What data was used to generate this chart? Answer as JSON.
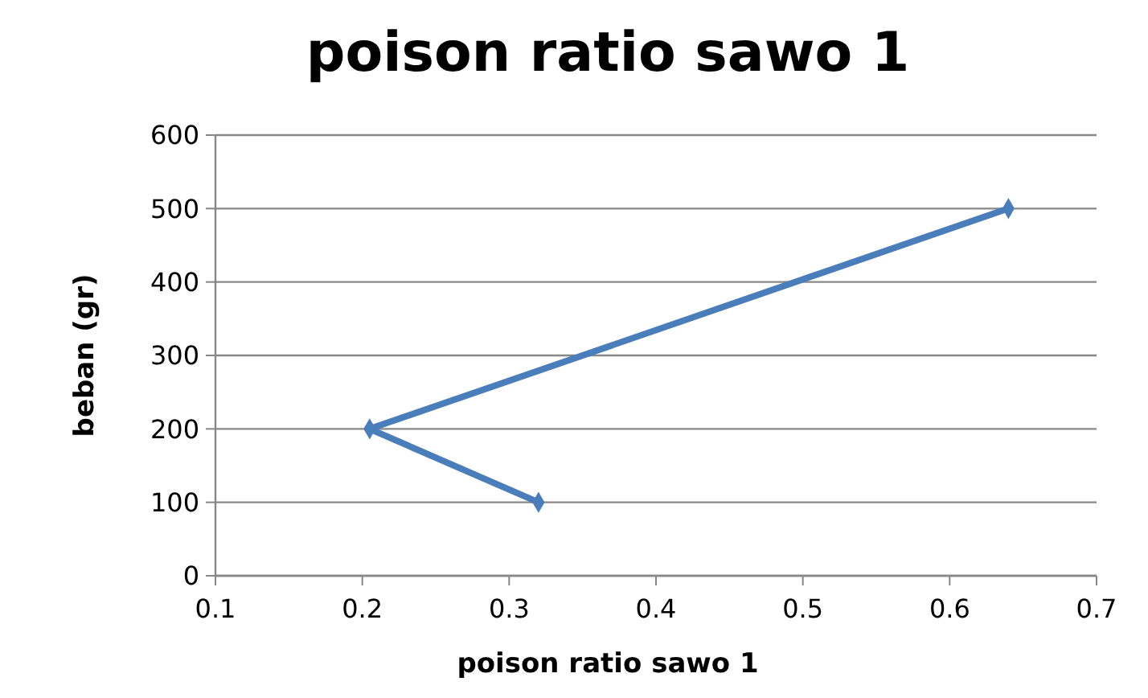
{
  "chart_data": {
    "type": "line",
    "title": "poison ratio sawo 1",
    "xlabel": "poison ratio sawo 1",
    "ylabel": "beban (gr)",
    "series": [
      {
        "color": "#4a7ebb",
        "x": [
          0.32,
          0.205,
          0.64
        ],
        "values": [
          100,
          200,
          500
        ]
      }
    ],
    "xlim": [
      0.1,
      0.7
    ],
    "xticks": [
      0.1,
      0.2,
      0.3,
      0.4,
      0.5,
      0.6,
      0.7
    ],
    "ylim": [
      0,
      600
    ],
    "yticks": [
      0,
      100,
      200,
      300,
      400,
      500,
      600
    ],
    "grid": "y",
    "marker": "diamond",
    "line_style": "solid"
  }
}
